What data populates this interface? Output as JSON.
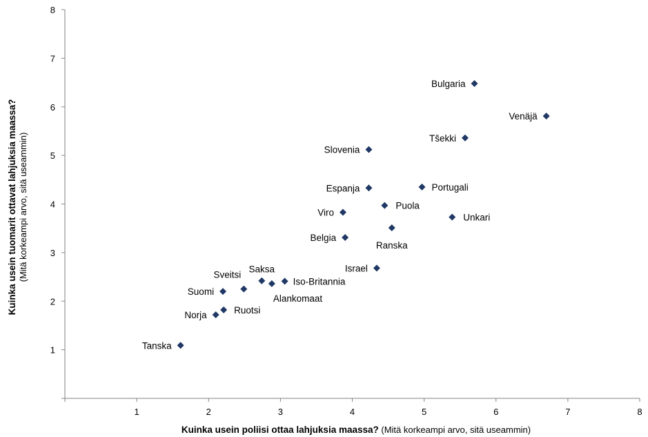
{
  "chart_data": {
    "type": "scatter",
    "xlabel_bold": "Kuinka usein poliisi ottaa lahjuksia maassa?",
    "xlabel_note": " (Mitä korkeampi arvo, sitä useammin)",
    "ylabel_bold": "Kuinka usein tuomarit ottavat lahjuksia maassa?",
    "ylabel_note": "(Mitä korkeampi arvo, sitä useammin)",
    "xlim": [
      0,
      8
    ],
    "ylim": [
      0,
      8
    ],
    "xticks": [
      1,
      2,
      3,
      4,
      5,
      6,
      7,
      8
    ],
    "yticks": [
      1,
      2,
      3,
      4,
      5,
      6,
      7,
      8
    ],
    "grid": false,
    "marker_color": "#1f3864",
    "points": [
      {
        "label": "Bulgaria",
        "x": 5.7,
        "y": 6.48
      },
      {
        "label": "Venäjä",
        "x": 6.7,
        "y": 5.81
      },
      {
        "label": "Tšekki",
        "x": 5.57,
        "y": 5.36
      },
      {
        "label": "Slovenia",
        "x": 4.23,
        "y": 5.12
      },
      {
        "label": "Espanja",
        "x": 4.23,
        "y": 4.33
      },
      {
        "label": "Portugali",
        "x": 4.97,
        "y": 4.35
      },
      {
        "label": "Puola",
        "x": 4.45,
        "y": 3.97
      },
      {
        "label": "Viro",
        "x": 3.87,
        "y": 3.83
      },
      {
        "label": "Unkari",
        "x": 5.39,
        "y": 3.73
      },
      {
        "label": "Ranska",
        "x": 4.55,
        "y": 3.51
      },
      {
        "label": "Belgia",
        "x": 3.9,
        "y": 3.31
      },
      {
        "label": "Israel",
        "x": 4.34,
        "y": 2.68
      },
      {
        "label": "Saksa",
        "x": 2.74,
        "y": 2.42
      },
      {
        "label": "Iso-Britannia",
        "x": 3.06,
        "y": 2.41
      },
      {
        "label": "Alankomaat",
        "x": 2.88,
        "y": 2.36
      },
      {
        "label": "Sveitsi",
        "x": 2.49,
        "y": 2.25
      },
      {
        "label": "Suomi",
        "x": 2.2,
        "y": 2.2
      },
      {
        "label": "Ruotsi",
        "x": 2.21,
        "y": 1.82
      },
      {
        "label": "Norja",
        "x": 2.1,
        "y": 1.72
      },
      {
        "label": "Tanska",
        "x": 1.61,
        "y": 1.09
      }
    ]
  }
}
